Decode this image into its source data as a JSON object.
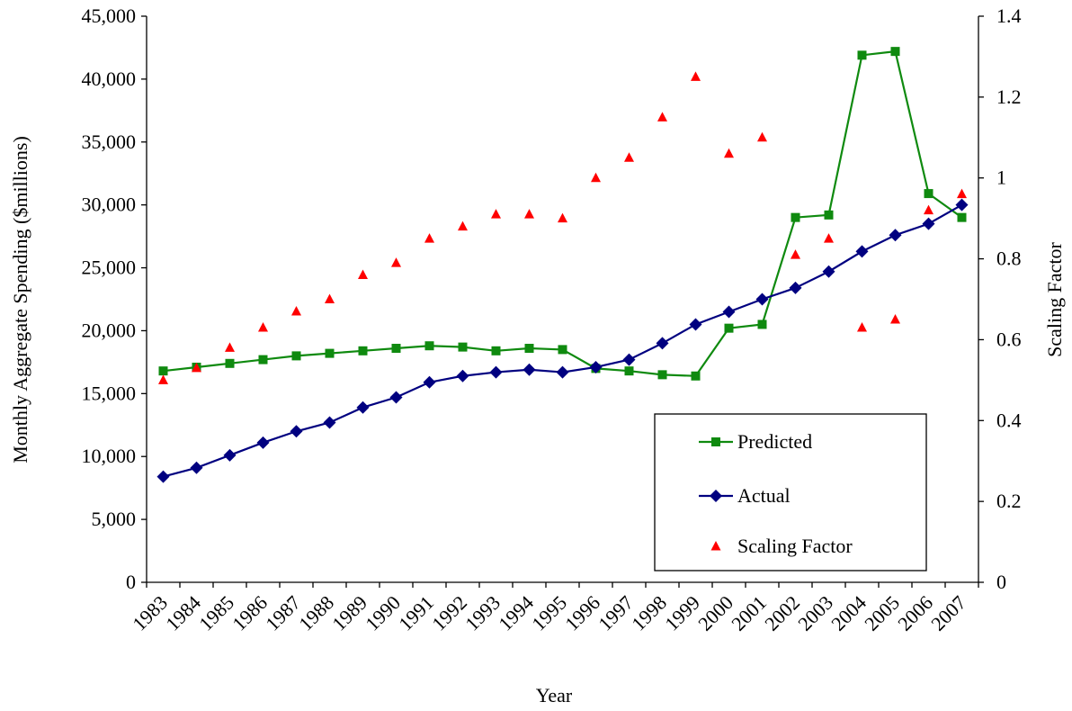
{
  "chart_data": {
    "type": "line",
    "title": "",
    "xlabel": "Year",
    "ylabel": "Monthly Aggregate  Spending ($millions)",
    "y2label": "Scaling Factor",
    "ylim": [
      0,
      45000
    ],
    "y2lim": [
      0,
      1.4
    ],
    "y_ticks": [
      "0",
      "5,000",
      "10,000",
      "15,000",
      "20,000",
      "25,000",
      "30,000",
      "35,000",
      "40,000",
      "45,000"
    ],
    "y_tick_values": [
      0,
      5000,
      10000,
      15000,
      20000,
      25000,
      30000,
      35000,
      40000,
      45000
    ],
    "y2_ticks": [
      "0",
      "0.2",
      "0.4",
      "0.6",
      "0.8",
      "1",
      "1.2",
      "1.4"
    ],
    "y2_tick_values": [
      0,
      0.2,
      0.4,
      0.6,
      0.8,
      1.0,
      1.2,
      1.4
    ],
    "categories": [
      "1983",
      "1984",
      "1985",
      "1986",
      "1987",
      "1988",
      "1989",
      "1990",
      "1991",
      "1992",
      "1993",
      "1994",
      "1995",
      "1996",
      "1997",
      "1998",
      "1999",
      "2000",
      "2001",
      "2002",
      "2003",
      "2004",
      "2005",
      "2006",
      "2007"
    ],
    "grid": false,
    "legend_position": "bottom-right",
    "series": [
      {
        "name": "Predicted",
        "axis": "left",
        "marker": "square",
        "color": "#0f8a0f",
        "values": [
          16800,
          17100,
          17400,
          17700,
          18000,
          18200,
          18400,
          18600,
          18800,
          18700,
          18400,
          18600,
          18500,
          17000,
          16800,
          16500,
          16400,
          20200,
          20500,
          29000,
          29200,
          41900,
          42200,
          30900,
          29000
        ]
      },
      {
        "name": "Actual",
        "axis": "left",
        "marker": "diamond",
        "color": "#000080",
        "values": [
          8400,
          9100,
          10100,
          11100,
          12000,
          12700,
          13900,
          14700,
          15900,
          16400,
          16700,
          16900,
          16700,
          17100,
          17700,
          19000,
          20500,
          21500,
          22500,
          23400,
          24700,
          26300,
          27600,
          28500,
          30000
        ]
      },
      {
        "name": "Scaling Factor",
        "axis": "right",
        "marker": "triangle",
        "color": "#ff0000",
        "values": [
          0.5,
          0.53,
          0.58,
          0.63,
          0.67,
          0.7,
          0.76,
          0.79,
          0.85,
          0.88,
          0.91,
          0.91,
          0.9,
          1.0,
          1.05,
          1.15,
          1.25,
          1.06,
          1.1,
          0.81,
          0.85,
          0.63,
          0.65,
          0.92,
          0.96
        ]
      }
    ]
  }
}
